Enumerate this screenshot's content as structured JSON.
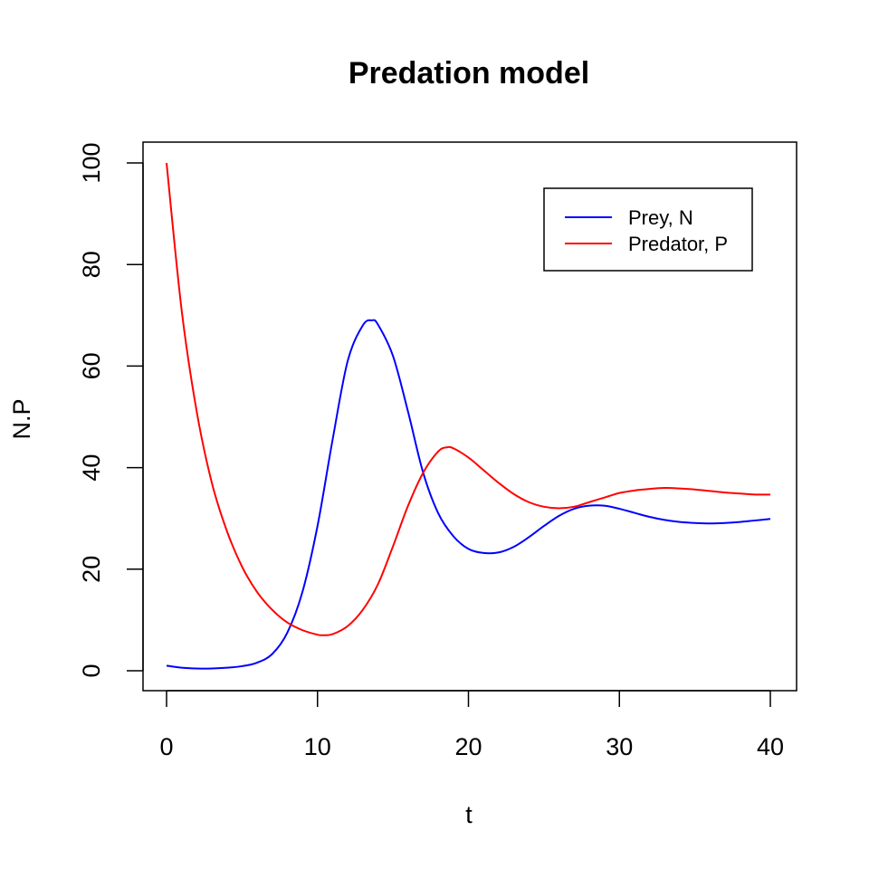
{
  "chart_data": {
    "type": "line",
    "title": "Predation model",
    "xlabel": "t",
    "ylabel": "N.P",
    "xlim": [
      0,
      40
    ],
    "ylim": [
      0,
      100
    ],
    "x_ticks": [
      "0",
      "10",
      "20",
      "30",
      "40"
    ],
    "y_ticks": [
      "0",
      "20",
      "40",
      "60",
      "80",
      "100"
    ],
    "grid": false,
    "legend_position": "top-right",
    "series": [
      {
        "name": "Prey, N",
        "color": "#0000ff",
        "points": [
          [
            0,
            1.0
          ],
          [
            1,
            0.6
          ],
          [
            2,
            0.45
          ],
          [
            3,
            0.45
          ],
          [
            4,
            0.6
          ],
          [
            5,
            0.9
          ],
          [
            6,
            1.6
          ],
          [
            7,
            3.3
          ],
          [
            8,
            7.5
          ],
          [
            9,
            15.5
          ],
          [
            10,
            28.5
          ],
          [
            11,
            45.5
          ],
          [
            12,
            61.0
          ],
          [
            13,
            68.0
          ],
          [
            13.6,
            69.0
          ],
          [
            14,
            68.2
          ],
          [
            15,
            62.0
          ],
          [
            16,
            51.0
          ],
          [
            17,
            39.0
          ],
          [
            18,
            31.0
          ],
          [
            19,
            26.5
          ],
          [
            20,
            24.0
          ],
          [
            21,
            23.2
          ],
          [
            22,
            23.3
          ],
          [
            23,
            24.4
          ],
          [
            24,
            26.3
          ],
          [
            25,
            28.5
          ],
          [
            26,
            30.5
          ],
          [
            27,
            31.9
          ],
          [
            28,
            32.5
          ],
          [
            29,
            32.5
          ],
          [
            30,
            31.9
          ],
          [
            31,
            31.1
          ],
          [
            32,
            30.3
          ],
          [
            33,
            29.7
          ],
          [
            34,
            29.3
          ],
          [
            35,
            29.1
          ],
          [
            36,
            29.0
          ],
          [
            37,
            29.1
          ],
          [
            38,
            29.3
          ],
          [
            39,
            29.6
          ],
          [
            40,
            29.9
          ]
        ]
      },
      {
        "name": "Predator, P",
        "color": "#ff0000",
        "points": [
          [
            0,
            100
          ],
          [
            1,
            71.0
          ],
          [
            2,
            51.0
          ],
          [
            3,
            37.0
          ],
          [
            4,
            27.5
          ],
          [
            5,
            20.5
          ],
          [
            6,
            15.5
          ],
          [
            7,
            12.0
          ],
          [
            8,
            9.5
          ],
          [
            9,
            8.0
          ],
          [
            10,
            7.1
          ],
          [
            10.4,
            7.0
          ],
          [
            11,
            7.2
          ],
          [
            12,
            8.8
          ],
          [
            13,
            12.0
          ],
          [
            14,
            17.0
          ],
          [
            15,
            24.5
          ],
          [
            16,
            32.5
          ],
          [
            17,
            39.0
          ],
          [
            18,
            43.2
          ],
          [
            18.6,
            44.0
          ],
          [
            19,
            43.8
          ],
          [
            20,
            42.0
          ],
          [
            21,
            39.5
          ],
          [
            22,
            37.0
          ],
          [
            23,
            34.8
          ],
          [
            24,
            33.2
          ],
          [
            25,
            32.3
          ],
          [
            26,
            32.0
          ],
          [
            27,
            32.3
          ],
          [
            28,
            33.2
          ],
          [
            29,
            34.1
          ],
          [
            30,
            35.0
          ],
          [
            31,
            35.5
          ],
          [
            32,
            35.8
          ],
          [
            33,
            36.0
          ],
          [
            34,
            35.9
          ],
          [
            35,
            35.7
          ],
          [
            36,
            35.4
          ],
          [
            37,
            35.1
          ],
          [
            38,
            34.9
          ],
          [
            39,
            34.7
          ],
          [
            40,
            34.7
          ]
        ]
      }
    ]
  }
}
